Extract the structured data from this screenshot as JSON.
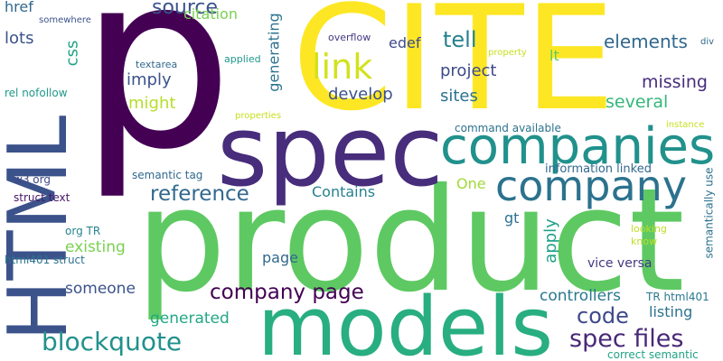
{
  "words": {
    "p": {
      "text": "p",
      "color": "#440154"
    },
    "cite": {
      "text": "CITE",
      "color": "#fde725"
    },
    "product": {
      "text": "product",
      "color": "#5ec962"
    },
    "html": {
      "text": "HTML",
      "color": "#3b528b"
    },
    "spec": {
      "text": "spec",
      "color": "#472d7b"
    },
    "companies": {
      "text": "companies",
      "color": "#21918c"
    },
    "models": {
      "text": "models",
      "color": "#28ae80"
    },
    "company": {
      "text": "company",
      "color": "#2c728e"
    },
    "link": {
      "text": "link",
      "color": "#d2e21b"
    },
    "source": {
      "text": "source",
      "color": "#3b528b"
    },
    "citation": {
      "text": "citation",
      "color": "#7ad151"
    },
    "reference": {
      "text": "reference",
      "color": "#31688e"
    },
    "blockquote": {
      "text": "blockquote",
      "color": "#21918c"
    },
    "company_page": {
      "text": "company page",
      "color": "#440154"
    },
    "spec_files": {
      "text": "spec files",
      "color": "#482878"
    },
    "code": {
      "text": "code",
      "color": "#3e4989"
    },
    "tell": {
      "text": "tell",
      "color": "#26828e"
    },
    "elements": {
      "text": "elements",
      "color": "#31688e"
    },
    "missing": {
      "text": "missing",
      "color": "#472d7b"
    },
    "several": {
      "text": "several",
      "color": "#35b779"
    },
    "develop": {
      "text": "develop",
      "color": "#3b528b"
    },
    "sites": {
      "text": "sites",
      "color": "#2c728e"
    },
    "project": {
      "text": "project",
      "color": "#3e4989"
    },
    "imply": {
      "text": "imply",
      "color": "#3b528b"
    },
    "might": {
      "text": "might",
      "color": "#b5de2b"
    },
    "css": {
      "text": "css",
      "color": "#20a386"
    },
    "lots": {
      "text": "lots",
      "color": "#3b528b"
    },
    "href": {
      "text": "href",
      "color": "#31688e"
    },
    "generating": {
      "text": "generating",
      "color": "#2c728e"
    },
    "edef": {
      "text": "edef",
      "color": "#3e4989"
    },
    "lt": {
      "text": "lt",
      "color": "#5ec962"
    },
    "contains": {
      "text": "Contains",
      "color": "#26828e"
    },
    "one": {
      "text": "One",
      "color": "#a0da39"
    },
    "existing": {
      "text": "existing",
      "color": "#7ad151"
    },
    "gt": {
      "text": "gt",
      "color": "#2c728e"
    },
    "apply": {
      "text": "apply",
      "color": "#1fa187"
    },
    "page": {
      "text": "page",
      "color": "#31688e"
    },
    "someone": {
      "text": "someone",
      "color": "#3b528b"
    },
    "generated": {
      "text": "generated",
      "color": "#22a884"
    },
    "controllers": {
      "text": "controllers",
      "color": "#2a788e"
    },
    "listing": {
      "text": "listing",
      "color": "#2c728e"
    },
    "vice_versa": {
      "text": "vice versa",
      "color": "#443983"
    },
    "information_linked": {
      "text": "information linked",
      "color": "#31688e"
    },
    "command_available": {
      "text": "command available",
      "color": "#2c728e"
    },
    "semantically_use": {
      "text": "semantically use",
      "color": "#2c728e"
    },
    "semantic_tag": {
      "text": "semantic tag",
      "color": "#31688e"
    },
    "struct_text": {
      "text": "struct text",
      "color": "#481668"
    },
    "w3_org": {
      "text": "w3 org",
      "color": "#3e4989"
    },
    "org_tr": {
      "text": "org TR",
      "color": "#25858e"
    },
    "html401_struct": {
      "text": "html401 struct",
      "color": "#2c728e"
    },
    "tr_html401": {
      "text": "TR html401",
      "color": "#2a788e"
    },
    "correct_semantic": {
      "text": "correct semantic",
      "color": "#20a386"
    },
    "looking": {
      "text": "looking",
      "color": "#bddf26"
    },
    "know": {
      "text": "know",
      "color": "#bddf26"
    },
    "textarea": {
      "text": "textarea",
      "color": "#31688e"
    },
    "applied": {
      "text": "applied",
      "color": "#1f988b"
    },
    "overflow": {
      "text": "overflow",
      "color": "#443983"
    },
    "property": {
      "text": "property",
      "color": "#c8e020"
    },
    "properties": {
      "text": "properties",
      "color": "#c8e020"
    },
    "somewhere": {
      "text": "somewhere",
      "color": "#3b528b"
    },
    "rel_nofollow": {
      "text": "rel nofollow",
      "color": "#1f988b"
    },
    "div": {
      "text": "div",
      "color": "#31688e"
    },
    "instance": {
      "text": "instance",
      "color": "#c8e020"
    }
  }
}
